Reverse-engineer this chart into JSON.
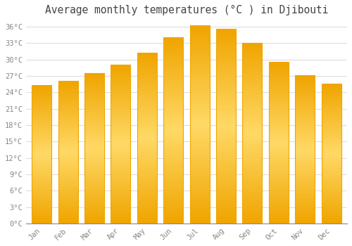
{
  "title": "Average monthly temperatures (°C ) in Djibouti",
  "months": [
    "Jan",
    "Feb",
    "Mar",
    "Apr",
    "May",
    "Jun",
    "Jul",
    "Aug",
    "Sep",
    "Oct",
    "Nov",
    "Dec"
  ],
  "values": [
    25.2,
    26.0,
    27.5,
    29.0,
    31.2,
    34.0,
    36.2,
    35.6,
    33.0,
    29.5,
    27.0,
    25.5
  ],
  "bar_color_center": "#FFD966",
  "bar_color_edge": "#F0A500",
  "background_color": "#FFFFFF",
  "grid_color": "#DDDDDD",
  "title_color": "#444444",
  "tick_color": "#888888",
  "ytick_step": 3,
  "ymin": 0,
  "ymax": 37,
  "title_fontsize": 10.5
}
